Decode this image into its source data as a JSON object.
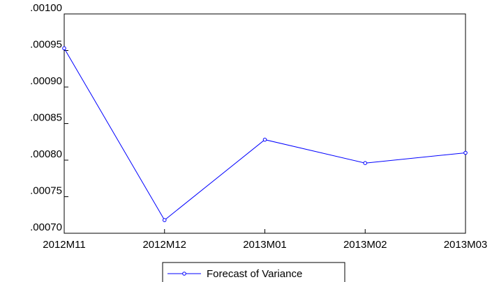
{
  "chart_data": {
    "type": "line",
    "categories": [
      "2012M11",
      "2012M12",
      "2013M01",
      "2013M02",
      "2013M03"
    ],
    "series": [
      {
        "name": "Forecast of Variance",
        "color": "#0000ff",
        "values": [
          0.000953,
          0.000718,
          0.000828,
          0.000796,
          0.00081
        ]
      }
    ],
    "ylim": [
      0.0007,
      0.001
    ],
    "yticks": [
      {
        "value": 0.0007,
        "label": ".00070"
      },
      {
        "value": 0.00075,
        "label": ".00075"
      },
      {
        "value": 0.0008,
        "label": ".00080"
      },
      {
        "value": 0.00085,
        "label": ".00085"
      },
      {
        "value": 0.0009,
        "label": ".00090"
      },
      {
        "value": 0.00095,
        "label": ".00095"
      },
      {
        "value": 0.001,
        "label": ".00100"
      }
    ],
    "grid": false,
    "legend": "bottom"
  }
}
